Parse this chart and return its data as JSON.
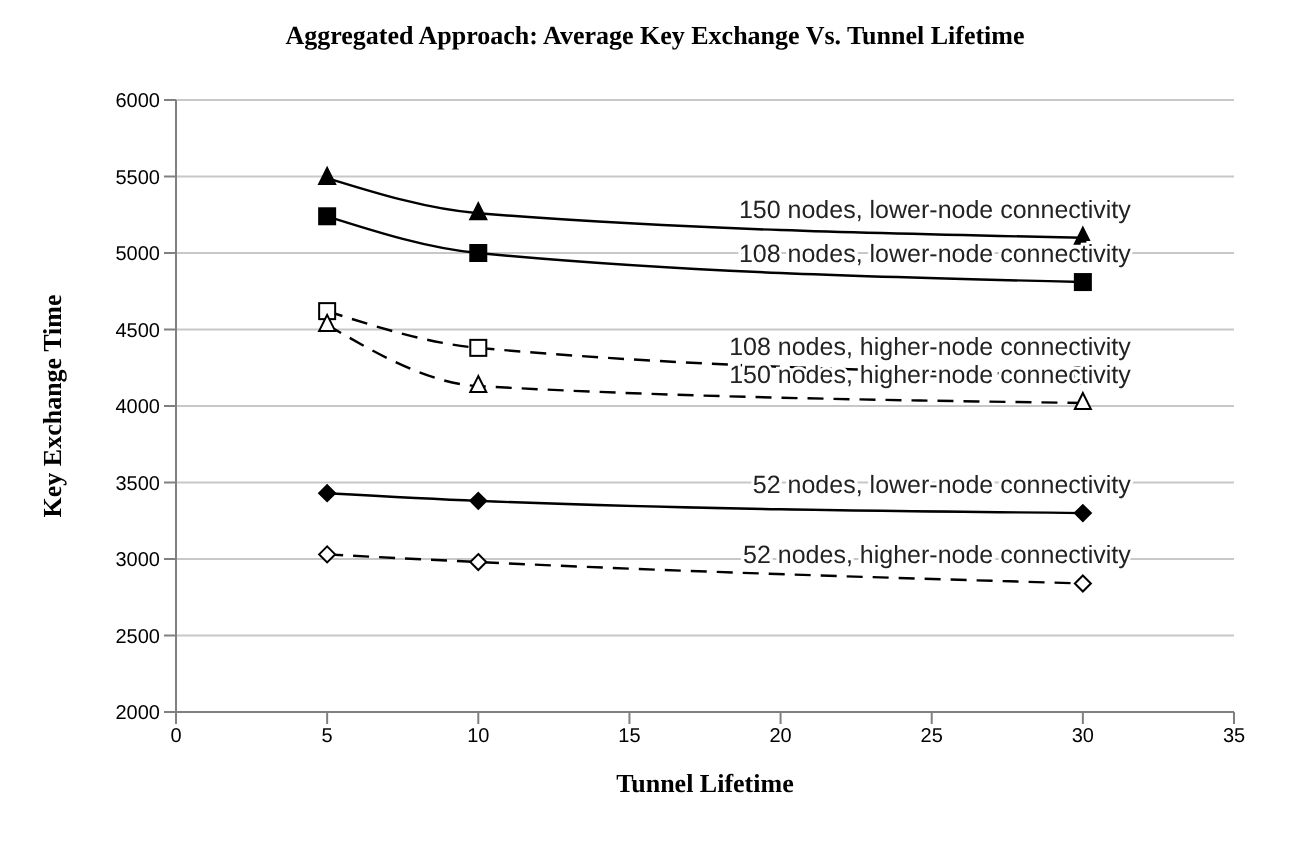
{
  "chart_data": {
    "type": "line",
    "title": "Aggregated Approach: Average Key Exchange Vs. Tunnel Lifetime",
    "xlabel": "Tunnel Lifetime",
    "ylabel": "Key Exchange Time",
    "x": [
      5,
      10,
      30
    ],
    "xlim": [
      0,
      35
    ],
    "xticks": [
      0,
      5,
      10,
      15,
      20,
      25,
      30,
      35
    ],
    "ylim": [
      2000,
      6000
    ],
    "yticks": [
      2000,
      2500,
      3000,
      3500,
      4000,
      4500,
      5000,
      5500,
      6000
    ],
    "grid": "y",
    "series": [
      {
        "name": "150 nodes, lower-node connectivity",
        "color": "#000000",
        "values": [
          5490,
          5260,
          5100
        ],
        "marker": "triangle",
        "line_style": "solid"
      },
      {
        "name": "108 nodes, lower-node connectivity",
        "color": "#000000",
        "values": [
          5240,
          5000,
          4810
        ],
        "marker": "square",
        "line_style": "solid"
      },
      {
        "name": "108 nodes, higher-node connectivity",
        "color": "#000000",
        "values": [
          4620,
          4380,
          4200
        ],
        "marker": "square",
        "line_style": "dashed"
      },
      {
        "name": "150 nodes, higher-node connectivity",
        "color": "#000000",
        "values": [
          4530,
          4130,
          4020
        ],
        "marker": "triangle",
        "line_style": "dashed"
      },
      {
        "name": "52 nodes, lower-node connectivity",
        "color": "#000000",
        "values": [
          3430,
          3380,
          3300
        ],
        "marker": "diamond",
        "line_style": "solid"
      },
      {
        "name": "52 nodes, higher-node connectivity",
        "color": "#000000",
        "values": [
          3030,
          2980,
          2840
        ],
        "marker": "diamond",
        "line_style": "dashed"
      }
    ]
  }
}
